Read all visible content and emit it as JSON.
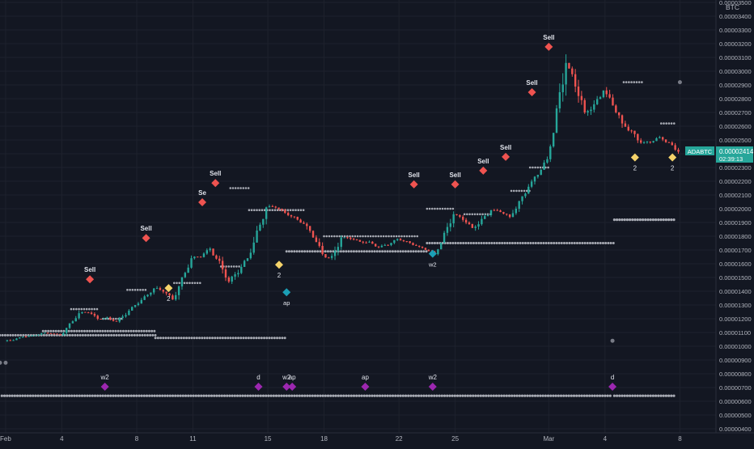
{
  "chart_data": {
    "type": "candlestick",
    "symbol": "ADABTC",
    "currency": "BTC",
    "last_price": "0.00002414",
    "countdown": "02:39:13",
    "colors": {
      "background": "#131722",
      "grid": "#1e222d",
      "up": "#26a69a",
      "down": "#ef5350",
      "sell_marker": "#ef5350",
      "buy_marker": "#f5d36a",
      "teal_marker": "#1b9fb5",
      "purple_marker": "#9c27b0",
      "level_dots": "#d1d4dc",
      "axis_text": "#b2b5be",
      "price_tag": "#26a69a"
    },
    "y_axis": {
      "ticks": [
        "0.00003500",
        "0.00003400",
        "0.00003300",
        "0.00003200",
        "0.00003100",
        "0.00003000",
        "0.00002900",
        "0.00002800",
        "0.00002700",
        "0.00002600",
        "0.00002500",
        "0.00002400",
        "0.00002300",
        "0.00002200",
        "0.00002100",
        "0.00002000",
        "0.00001900",
        "0.00001800",
        "0.00001700",
        "0.00001600",
        "0.00001500",
        "0.00001400",
        "0.00001300",
        "0.00001200",
        "0.00001100",
        "0.00001000",
        "0.00000900",
        "0.00000800",
        "0.00000700",
        "0.00000600",
        "0.00000500",
        "0.00000400"
      ],
      "min": 4e-06,
      "max": 3.5e-05
    },
    "x_axis": {
      "ticks": [
        "Feb",
        "4",
        "8",
        "11",
        "15",
        "18",
        "22",
        "25",
        "Mar",
        "4",
        "8"
      ],
      "domain_days": [
        -0.3,
        36.5
      ]
    },
    "ohlc_daily": [
      [
        1.038e-05,
        1.085e-05,
        1.025e-05,
        1.07e-05
      ],
      [
        1.07e-05,
        1.12e-05,
        1.055e-05,
        1.095e-05
      ],
      [
        1.095e-05,
        1.11e-05,
        1.06e-05,
        1.08e-05
      ],
      [
        1.08e-05,
        1.26e-05,
        1.075e-05,
        1.24e-05
      ],
      [
        1.24e-05,
        1.3e-05,
        1.185e-05,
        1.2e-05
      ],
      [
        1.2e-05,
        1.23e-05,
        1.15e-05,
        1.18e-05
      ],
      [
        1.18e-05,
        1.33e-05,
        1.17e-05,
        1.3e-05
      ],
      [
        1.3e-05,
        1.44e-05,
        1.29e-05,
        1.42e-05
      ],
      [
        1.42e-05,
        1.47e-05,
        1.32e-05,
        1.34e-05
      ],
      [
        1.34e-05,
        1.66e-05,
        1.33e-05,
        1.64e-05
      ],
      [
        1.64e-05,
        1.73e-05,
        1.6e-05,
        1.71e-05
      ],
      [
        1.71e-05,
        1.74e-05,
        1.44e-05,
        1.47e-05
      ],
      [
        1.47e-05,
        1.69e-05,
        1.45e-05,
        1.64e-05
      ],
      [
        1.64e-05,
        2.04e-05,
        1.63e-05,
        2.01e-05
      ],
      [
        2.01e-05,
        2.06e-05,
        1.93e-05,
        1.97e-05
      ],
      [
        1.97e-05,
        1.98e-05,
        1.86e-05,
        1.89e-05
      ],
      [
        1.89e-05,
        1.94e-05,
        1.66e-05,
        1.67e-05
      ],
      [
        1.67e-05,
        1.82e-05,
        1.49e-05,
        1.79e-05
      ],
      [
        1.79e-05,
        1.81e-05,
        1.72e-05,
        1.76e-05
      ],
      [
        1.76e-05,
        1.79e-05,
        1.69e-05,
        1.72e-05
      ],
      [
        1.72e-05,
        1.8e-05,
        1.7e-05,
        1.78e-05
      ],
      [
        1.78e-05,
        1.79e-05,
        1.71e-05,
        1.73e-05
      ],
      [
        1.73e-05,
        1.74e-05,
        1.66e-05,
        1.67e-05
      ],
      [
        1.67e-05,
        1.99e-05,
        1.66e-05,
        1.96e-05
      ],
      [
        1.96e-05,
        1.99e-05,
        1.85e-05,
        1.86e-05
      ],
      [
        1.86e-05,
        2.09e-05,
        1.84e-05,
        1.99e-05
      ],
      [
        1.99e-05,
        2.02e-05,
        1.92e-05,
        1.94e-05
      ],
      [
        1.94e-05,
        2.18e-05,
        1.93e-05,
        2.16e-05
      ],
      [
        2.16e-05,
        2.38e-05,
        2.15e-05,
        2.36e-05
      ],
      [
        2.36e-05,
        3.16e-05,
        2.34e-05,
        3.06e-05
      ],
      [
        3.06e-05,
        3.11e-05,
        2.62e-05,
        2.7e-05
      ],
      [
        2.7e-05,
        2.93e-05,
        2.64e-05,
        2.86e-05
      ],
      [
        2.86e-05,
        2.9e-05,
        2.58e-05,
        2.62e-05
      ],
      [
        2.62e-05,
        2.64e-05,
        2.4e-05,
        2.48e-05
      ],
      [
        2.48e-05,
        2.56e-05,
        2.45e-05,
        2.52e-05
      ],
      [
        2.52e-05,
        2.54e-05,
        2.39e-05,
        2.414e-05
      ]
    ],
    "sell_signals": [
      {
        "label": "Sell",
        "day": 4.5,
        "price": 1.44e-05
      },
      {
        "label": "Sell",
        "day": 7.5,
        "price": 1.74e-05
      },
      {
        "label": "Se",
        "day": 10.5,
        "price": 2e-05
      },
      {
        "label": "Sell",
        "day": 11.2,
        "price": 2.14e-05
      },
      {
        "label": "Sell",
        "day": 21.8,
        "price": 2.13e-05
      },
      {
        "label": "Sell",
        "day": 24.0,
        "price": 2.13e-05
      },
      {
        "label": "Sell",
        "day": 25.5,
        "price": 2.23e-05
      },
      {
        "label": "Sell",
        "day": 26.7,
        "price": 2.33e-05
      },
      {
        "label": "Sell",
        "day": 28.1,
        "price": 2.8e-05
      },
      {
        "label": "Sell",
        "day": 29.0,
        "price": 3.13e-05
      }
    ],
    "buy_signals": [
      {
        "label": "2",
        "day": 8.7,
        "price": 1.47e-05
      },
      {
        "label": "2",
        "day": 14.6,
        "price": 1.64e-05
      },
      {
        "label": "2",
        "day": 33.6,
        "price": 2.42e-05
      },
      {
        "label": "2",
        "day": 35.6,
        "price": 2.42e-05
      }
    ],
    "teal_signals": [
      {
        "label": "ap",
        "day": 15.0,
        "price": 1.44e-05
      },
      {
        "label": "w2",
        "day": 22.8,
        "price": 1.72e-05
      }
    ],
    "purple_signals": [
      {
        "label": "w2",
        "day": 5.3
      },
      {
        "label": "d",
        "day": 13.5
      },
      {
        "label": "w2",
        "day": 15.0
      },
      {
        "label": "ap",
        "day": 15.3
      },
      {
        "label": "ap",
        "day": 19.2
      },
      {
        "label": "w2",
        "day": 22.8
      },
      {
        "label": "d",
        "day": 32.4
      }
    ],
    "dotted_levels": [
      {
        "price": 1.08e-05,
        "from": -0.3,
        "to": 8.1,
        "size": 1.5
      },
      {
        "price": 1.11e-05,
        "from": 2.0,
        "to": 8.0,
        "size": 1.5
      },
      {
        "price": 1.06e-05,
        "from": 8.0,
        "to": 15.0,
        "size": 1.5
      },
      {
        "price": 1.2e-05,
        "from": 5.2,
        "to": 6.2,
        "size": 1.3
      },
      {
        "price": 1.27e-05,
        "from": 3.5,
        "to": 5.0,
        "size": 1.3
      },
      {
        "price": 1.41e-05,
        "from": 6.5,
        "to": 7.5,
        "size": 1.3
      },
      {
        "price": 1.46e-05,
        "from": 9.0,
        "to": 10.5,
        "size": 1.3
      },
      {
        "price": 1.58e-05,
        "from": 11.5,
        "to": 12.5,
        "size": 1.3
      },
      {
        "price": 2.15e-05,
        "from": 12.0,
        "to": 13.0,
        "size": 1.3
      },
      {
        "price": 1.99e-05,
        "from": 13.0,
        "to": 16.0,
        "size": 1.3
      },
      {
        "price": 1.69e-05,
        "from": 15.0,
        "to": 22.5,
        "size": 1.5
      },
      {
        "price": 1.75e-05,
        "from": 22.5,
        "to": 32.5,
        "size": 1.5
      },
      {
        "price": 1.8e-05,
        "from": 17.0,
        "to": 22.0,
        "size": 1.3
      },
      {
        "price": 2e-05,
        "from": 22.5,
        "to": 24.0,
        "size": 1.3
      },
      {
        "price": 1.96e-05,
        "from": 24.5,
        "to": 26.0,
        "size": 1.3
      },
      {
        "price": 2.13e-05,
        "from": 27.0,
        "to": 28.0,
        "size": 1.3
      },
      {
        "price": 2.3e-05,
        "from": 28.0,
        "to": 29.0,
        "size": 1.3
      },
      {
        "price": 2.92e-05,
        "from": 33.0,
        "to": 34.0,
        "size": 1.3
      },
      {
        "price": 2.62e-05,
        "from": 35.0,
        "to": 35.7,
        "size": 1.3
      },
      {
        "price": 1.92e-05,
        "from": 32.5,
        "to": 35.8,
        "size": 1.6
      },
      {
        "price": 6.4e-06,
        "from": -0.2,
        "to": 32.3,
        "size": 1.6
      },
      {
        "price": 6.4e-06,
        "from": 32.5,
        "to": 35.8,
        "size": 1.6
      }
    ],
    "isolated_dots": [
      {
        "day": 36.0,
        "price": 2.92e-05
      },
      {
        "day": 32.4,
        "price": 1.04e-05
      },
      {
        "day": -0.3,
        "price": 8.8e-06
      },
      {
        "day": 0.0,
        "price": 8.8e-06
      }
    ]
  }
}
